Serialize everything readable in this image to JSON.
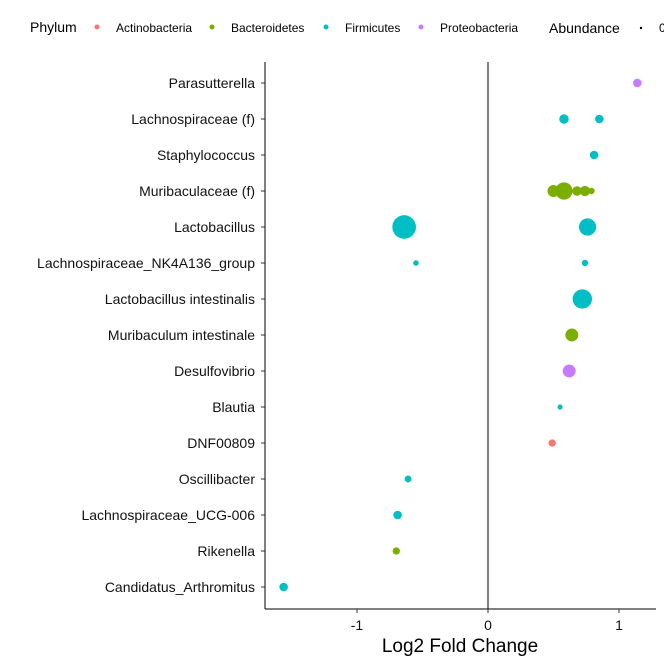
{
  "chart_data": {
    "type": "scatter",
    "xlabel": "Log2 Fold Change",
    "ylabel": "",
    "xlim": [
      -1.7,
      1.3
    ],
    "x_ticks": [
      {
        "value": -1,
        "label": "-1"
      },
      {
        "value": 0,
        "label": "0"
      },
      {
        "value": 1,
        "label": "1"
      }
    ],
    "reference_line_x": 0,
    "grid": false,
    "legend_position": "top",
    "categories": [
      "Parasutterella",
      "Lachnospiraceae (f)",
      "Staphylococcus",
      "Muribaculaceae (f)",
      "Lactobacillus",
      "Lachnospiraceae_NK4A136_group",
      "Lactobacillus intestinalis",
      "Muribaculum intestinale",
      "Desulfovibrio",
      "Blautia",
      "DNF00809",
      "Oscillibacter",
      "Lachnospiraceae_UCG-006",
      "Rikenella",
      "Candidatus_Arthromitus"
    ],
    "legend": {
      "phylum_title": "Phylum",
      "phylum_entries": [
        {
          "name": "Actinobacteria",
          "color": "#F8766D"
        },
        {
          "name": "Bacteroidetes",
          "color": "#7CAE00"
        },
        {
          "name": "Firmicutes",
          "color": "#00BFC4"
        },
        {
          "name": "Proteobacteria",
          "color": "#C77CFF"
        }
      ],
      "abundance_title": "Abundance",
      "abundance_first_label": "0"
    },
    "points": [
      {
        "category": "Parasutterella",
        "x": 1.14,
        "phylum": "Proteobacteria",
        "size": 2.0
      },
      {
        "category": "Lachnospiraceae (f)",
        "x": 0.58,
        "phylum": "Firmicutes",
        "size": 2.2
      },
      {
        "category": "Lachnospiraceae (f)",
        "x": 0.85,
        "phylum": "Firmicutes",
        "size": 2.0
      },
      {
        "category": "Staphylococcus",
        "x": 0.81,
        "phylum": "Firmicutes",
        "size": 2.0
      },
      {
        "category": "Muribaculaceae (f)",
        "x": 0.5,
        "phylum": "Bacteroidetes",
        "size": 2.8
      },
      {
        "category": "Muribaculaceae (f)",
        "x": 0.58,
        "phylum": "Bacteroidetes",
        "size": 4.0
      },
      {
        "category": "Muribaculaceae (f)",
        "x": 0.68,
        "phylum": "Bacteroidetes",
        "size": 2.2
      },
      {
        "category": "Muribaculaceae (f)",
        "x": 0.74,
        "phylum": "Bacteroidetes",
        "size": 2.4
      },
      {
        "category": "Muribaculaceae (f)",
        "x": 0.79,
        "phylum": "Bacteroidetes",
        "size": 1.5
      },
      {
        "category": "Lactobacillus",
        "x": -0.64,
        "phylum": "Firmicutes",
        "size": 5.5
      },
      {
        "category": "Lactobacillus",
        "x": 0.76,
        "phylum": "Firmicutes",
        "size": 4.0
      },
      {
        "category": "Lachnospiraceae_NK4A136_group",
        "x": -0.55,
        "phylum": "Firmicutes",
        "size": 1.3
      },
      {
        "category": "Lachnospiraceae_NK4A136_group",
        "x": 0.74,
        "phylum": "Firmicutes",
        "size": 1.5
      },
      {
        "category": "Lactobacillus intestinalis",
        "x": 0.72,
        "phylum": "Firmicutes",
        "size": 4.5
      },
      {
        "category": "Muribaculum intestinale",
        "x": 0.64,
        "phylum": "Bacteroidetes",
        "size": 3.0
      },
      {
        "category": "Desulfovibrio",
        "x": 0.62,
        "phylum": "Proteobacteria",
        "size": 3.0
      },
      {
        "category": "Blautia",
        "x": 0.55,
        "phylum": "Firmicutes",
        "size": 1.2
      },
      {
        "category": "DNF00809",
        "x": 0.49,
        "phylum": "Actinobacteria",
        "size": 1.7
      },
      {
        "category": "Oscillibacter",
        "x": -0.61,
        "phylum": "Firmicutes",
        "size": 1.6
      },
      {
        "category": "Lachnospiraceae_UCG-006",
        "x": -0.69,
        "phylum": "Firmicutes",
        "size": 2.0
      },
      {
        "category": "Rikenella",
        "x": -0.7,
        "phylum": "Bacteroidetes",
        "size": 1.7
      },
      {
        "category": "Candidatus_Arthromitus",
        "x": -1.56,
        "phylum": "Firmicutes",
        "size": 2.0
      }
    ]
  }
}
